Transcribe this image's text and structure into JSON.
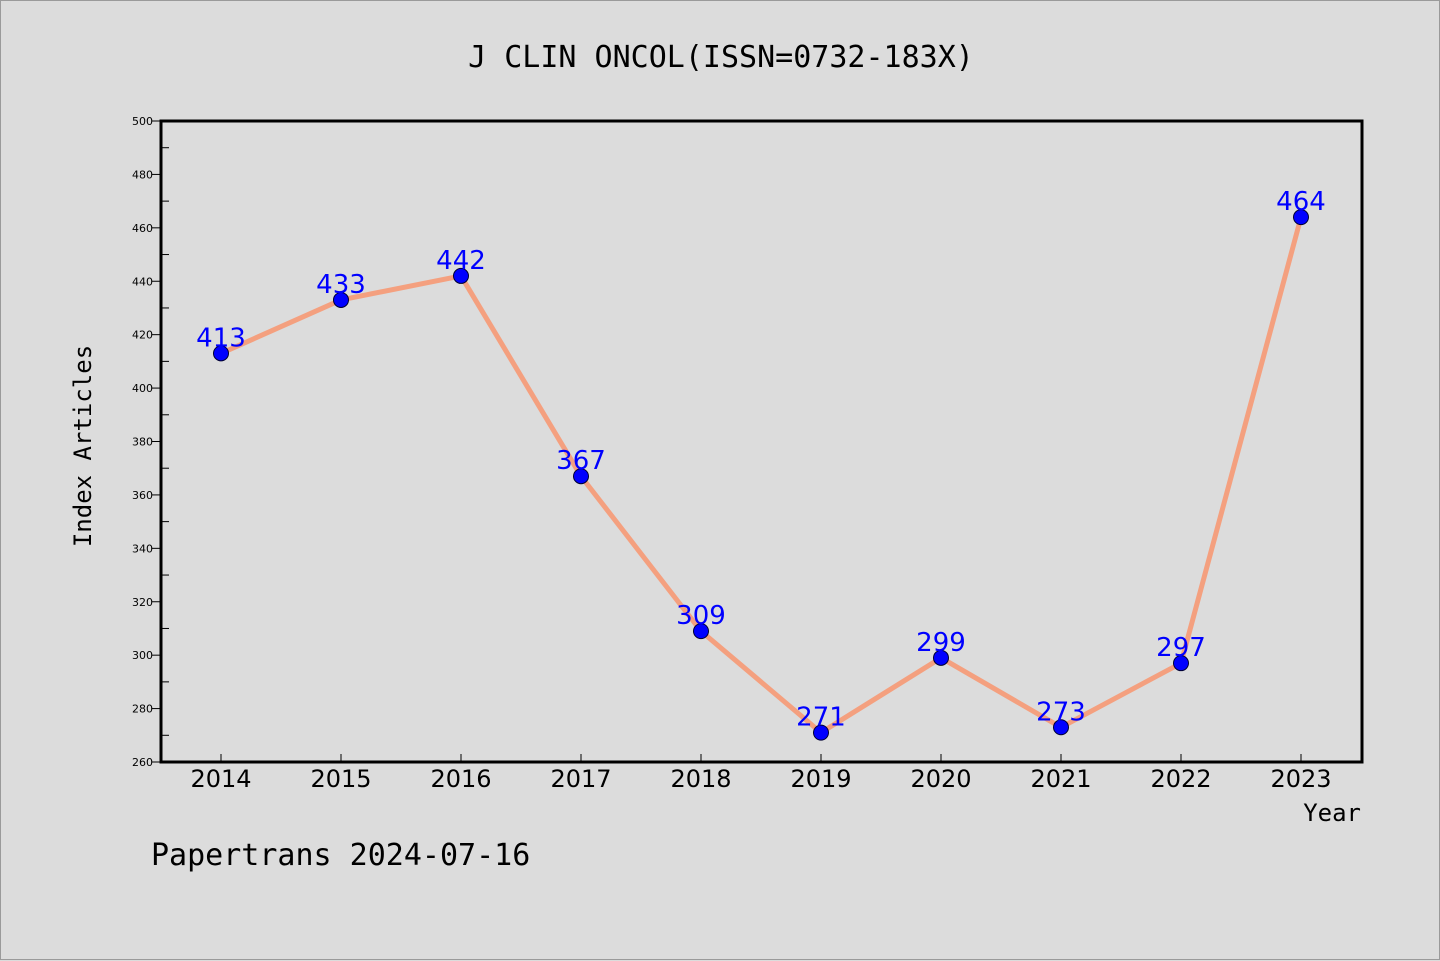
{
  "chart_data": {
    "type": "line",
    "title": "J CLIN ONCOL(ISSN=0732-183X)",
    "xlabel": "Year",
    "ylabel": "Index Articles",
    "categories": [
      "2014",
      "2015",
      "2016",
      "2017",
      "2018",
      "2019",
      "2020",
      "2021",
      "2022",
      "2023"
    ],
    "values": [
      413,
      433,
      442,
      367,
      309,
      271,
      299,
      273,
      297,
      464
    ],
    "ylim": [
      260,
      500
    ],
    "yticks": [
      260,
      280,
      300,
      320,
      340,
      360,
      380,
      400,
      420,
      440,
      460,
      480,
      500
    ],
    "grid": false,
    "line_color": "#f4a07f",
    "marker_color": "#0000ff",
    "label_color": "#0000ff"
  },
  "footer": {
    "text": "Papertrans 2024-07-16"
  }
}
